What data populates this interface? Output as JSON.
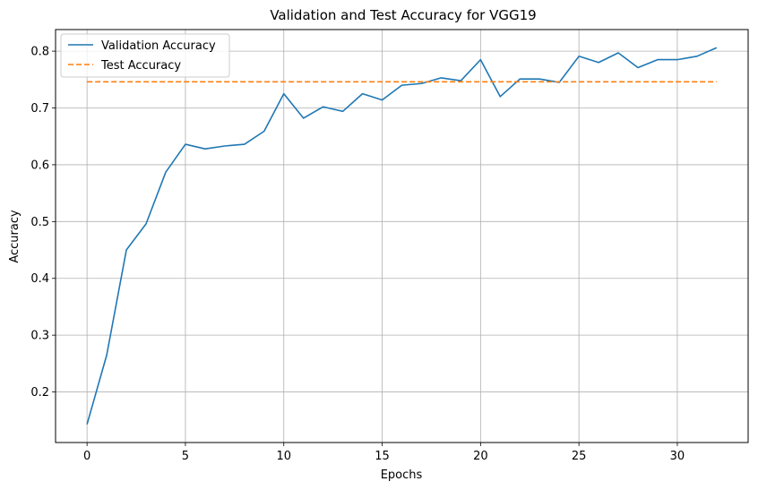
{
  "chart_data": {
    "type": "line",
    "title": "Validation and Test Accuracy for VGG19",
    "xlabel": "Epochs",
    "ylabel": "Accuracy",
    "xlim": [
      -1.6,
      33.6
    ],
    "ylim": [
      0.111,
      0.838
    ],
    "xticks": [
      0,
      5,
      10,
      15,
      20,
      25,
      30
    ],
    "yticks": [
      0.2,
      0.3,
      0.4,
      0.5,
      0.6,
      0.7,
      0.8
    ],
    "grid": true,
    "legend_position": "top-left",
    "series": [
      {
        "name": "Validation Accuracy",
        "style": "solid",
        "color": "#1f77b4",
        "x": [
          0,
          1,
          2,
          3,
          4,
          5,
          6,
          7,
          8,
          9,
          10,
          11,
          12,
          13,
          14,
          15,
          16,
          17,
          18,
          19,
          20,
          21,
          22,
          23,
          24,
          25,
          26,
          27,
          28,
          29,
          30,
          31,
          32
        ],
        "values": [
          0.143,
          0.265,
          0.45,
          0.496,
          0.587,
          0.636,
          0.628,
          0.633,
          0.636,
          0.659,
          0.725,
          0.682,
          0.702,
          0.694,
          0.725,
          0.714,
          0.74,
          0.743,
          0.753,
          0.748,
          0.785,
          0.72,
          0.751,
          0.751,
          0.745,
          0.791,
          0.78,
          0.797,
          0.771,
          0.785,
          0.785,
          0.791,
          0.806
        ]
      },
      {
        "name": "Test Accuracy",
        "style": "dashed",
        "color": "#ff7f0e",
        "x": [
          0,
          32
        ],
        "values": [
          0.746,
          0.746
        ]
      }
    ]
  }
}
